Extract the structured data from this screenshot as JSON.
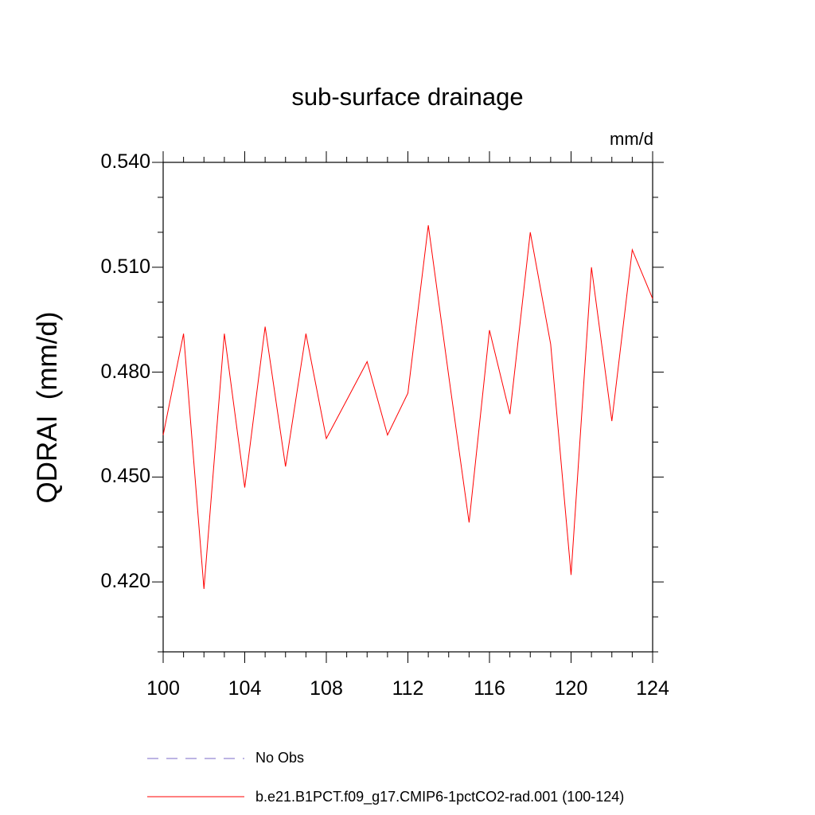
{
  "chart_data": {
    "type": "line",
    "title": "sub-surface drainage",
    "units": "mm/d",
    "ylabel": "QDRAI  (mm/d)",
    "xlabel": "",
    "xlim": [
      100,
      124
    ],
    "ylim": [
      0.4,
      0.54
    ],
    "xticks": [
      "100",
      "104",
      "108",
      "112",
      "116",
      "120",
      "124"
    ],
    "yticks": [
      "0.420",
      "0.450",
      "0.480",
      "0.510",
      "0.540"
    ],
    "grid": false,
    "legend_position": "bottom",
    "series": [
      {
        "name": "No Obs",
        "color": "#7b68c8",
        "dash": "dashed",
        "x": [],
        "y": []
      },
      {
        "name": "b.e21.B1PCT.f09_g17.CMIP6-1pctCO2-rad.001 (100-124)",
        "color": "#ff0000",
        "dash": "solid",
        "x": [
          100,
          101,
          102,
          103,
          104,
          105,
          106,
          107,
          108,
          109,
          110,
          111,
          112,
          113,
          114,
          115,
          116,
          117,
          118,
          119,
          120,
          121,
          122,
          123,
          124
        ],
        "y": [
          0.462,
          0.491,
          0.418,
          0.491,
          0.447,
          0.493,
          0.453,
          0.491,
          0.461,
          0.472,
          0.483,
          0.462,
          0.474,
          0.522,
          0.479,
          0.437,
          0.492,
          0.468,
          0.52,
          0.488,
          0.422,
          0.51,
          0.466,
          0.515,
          0.501
        ]
      }
    ]
  }
}
